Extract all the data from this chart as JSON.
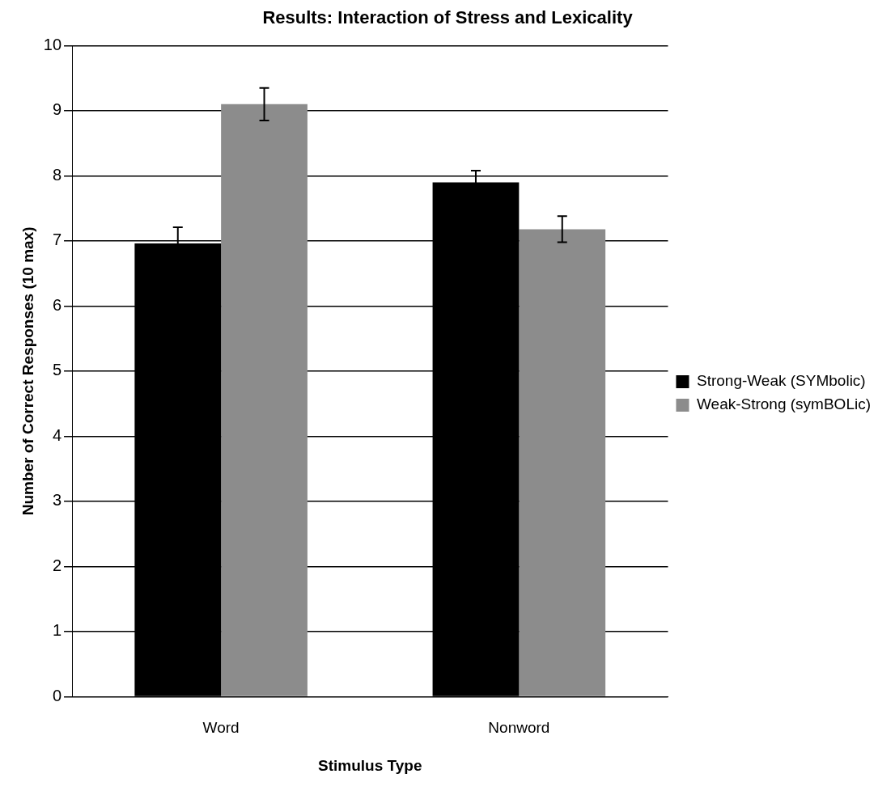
{
  "chart_data": {
    "type": "bar",
    "title": "Results: Interaction of Stress and Lexicality",
    "xlabel": "Stimulus Type",
    "ylabel": "Number of Correct Responses (10 max)",
    "categories": [
      "Word",
      "Nonword"
    ],
    "series": [
      {
        "name": "Strong-Weak (SYMbolic)",
        "color": "#000000",
        "values": [
          6.96,
          7.9
        ],
        "errors": [
          0.25,
          0.18
        ]
      },
      {
        "name": "Weak-Strong (symBOLic)",
        "color": "#8c8c8c",
        "values": [
          9.1,
          7.18
        ],
        "errors": [
          0.25,
          0.2
        ]
      }
    ],
    "ylim": [
      0,
      10
    ],
    "yticks": [
      0,
      1,
      2,
      3,
      4,
      5,
      6,
      7,
      8,
      9,
      10
    ],
    "grid": "y",
    "legend": "right"
  }
}
